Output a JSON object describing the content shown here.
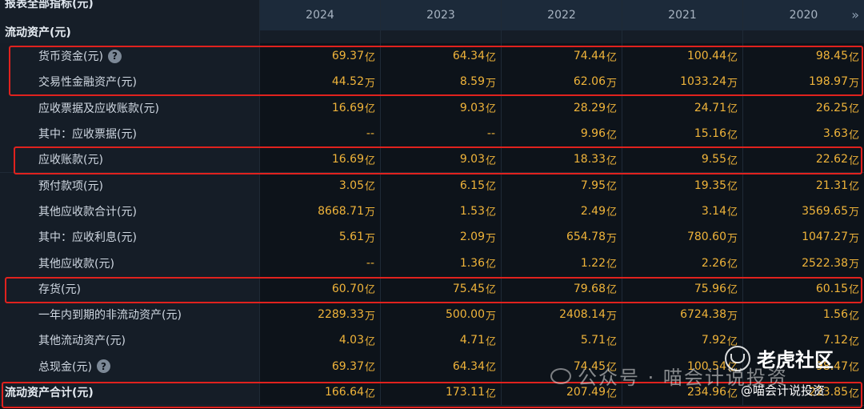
{
  "header": {
    "title": "报表全部指标(元)",
    "years": [
      "2024",
      "2023",
      "2022",
      "2021",
      "2020"
    ],
    "expand_glyph": "»"
  },
  "section": {
    "title": "流动资产(元)"
  },
  "rows": [
    {
      "label": "货币资金(元)",
      "has_help": true,
      "values": [
        [
          "69.37",
          "亿"
        ],
        [
          "64.34",
          "亿"
        ],
        [
          "74.44",
          "亿"
        ],
        [
          "100.44",
          "亿"
        ],
        [
          "98.45",
          "亿"
        ]
      ]
    },
    {
      "label": "交易性金融资产(元)",
      "has_help": false,
      "values": [
        [
          "44.52",
          "万"
        ],
        [
          "8.59",
          "万"
        ],
        [
          "62.06",
          "万"
        ],
        [
          "1033.24",
          "万"
        ],
        [
          "198.97",
          "万"
        ]
      ]
    },
    {
      "label": "应收票据及应收账款(元)",
      "has_help": false,
      "values": [
        [
          "16.69",
          "亿"
        ],
        [
          "9.03",
          "亿"
        ],
        [
          "28.29",
          "亿"
        ],
        [
          "24.71",
          "亿"
        ],
        [
          "26.25",
          "亿"
        ]
      ]
    },
    {
      "label": "其中：应收票据(元)",
      "has_help": false,
      "values": [
        [
          "--",
          ""
        ],
        [
          "--",
          ""
        ],
        [
          "9.96",
          "亿"
        ],
        [
          "15.16",
          "亿"
        ],
        [
          "3.63",
          "亿"
        ]
      ]
    },
    {
      "label": "应收账款(元)",
      "has_help": false,
      "values": [
        [
          "16.69",
          "亿"
        ],
        [
          "9.03",
          "亿"
        ],
        [
          "18.33",
          "亿"
        ],
        [
          "9.55",
          "亿"
        ],
        [
          "22.62",
          "亿"
        ]
      ]
    },
    {
      "label": "预付款项(元)",
      "has_help": false,
      "values": [
        [
          "3.05",
          "亿"
        ],
        [
          "6.15",
          "亿"
        ],
        [
          "7.95",
          "亿"
        ],
        [
          "19.35",
          "亿"
        ],
        [
          "21.31",
          "亿"
        ]
      ]
    },
    {
      "label": "其他应收款合计(元)",
      "has_help": false,
      "values": [
        [
          "8668.71",
          "万"
        ],
        [
          "1.53",
          "亿"
        ],
        [
          "2.49",
          "亿"
        ],
        [
          "3.14",
          "亿"
        ],
        [
          "3569.65",
          "万"
        ]
      ]
    },
    {
      "label": "其中：应收利息(元)",
      "has_help": false,
      "values": [
        [
          "5.61",
          "万"
        ],
        [
          "2.09",
          "万"
        ],
        [
          "654.78",
          "万"
        ],
        [
          "780.60",
          "万"
        ],
        [
          "1047.27",
          "万"
        ]
      ]
    },
    {
      "label": "其他应收款(元)",
      "has_help": false,
      "values": [
        [
          "--",
          ""
        ],
        [
          "1.36",
          "亿"
        ],
        [
          "1.22",
          "亿"
        ],
        [
          "2.26",
          "亿"
        ],
        [
          "2522.38",
          "万"
        ]
      ]
    },
    {
      "label": "存货(元)",
      "has_help": false,
      "values": [
        [
          "60.70",
          "亿"
        ],
        [
          "75.45",
          "亿"
        ],
        [
          "79.68",
          "亿"
        ],
        [
          "75.96",
          "亿"
        ],
        [
          "60.15",
          "亿"
        ]
      ]
    },
    {
      "label": "一年内到期的非流动资产(元)",
      "has_help": false,
      "values": [
        [
          "2289.33",
          "万"
        ],
        [
          "500.00",
          "万"
        ],
        [
          "2408.14",
          "万"
        ],
        [
          "6724.38",
          "万"
        ],
        [
          "1.56",
          "亿"
        ]
      ]
    },
    {
      "label": "其他流动资产(元)",
      "has_help": false,
      "values": [
        [
          "4.03",
          "亿"
        ],
        [
          "4.71",
          "亿"
        ],
        [
          "5.71",
          "亿"
        ],
        [
          "7.92",
          "亿"
        ],
        [
          "7.12",
          "亿"
        ]
      ]
    },
    {
      "label": "总现金(元)",
      "has_help": true,
      "values": [
        [
          "69.37",
          "亿"
        ],
        [
          "64.34",
          "亿"
        ],
        [
          "74.45",
          "亿"
        ],
        [
          "100.54",
          "亿"
        ],
        [
          "98.47",
          "亿"
        ]
      ]
    },
    {
      "label": "流动资产合计(元)",
      "has_help": false,
      "is_total": true,
      "values": [
        [
          "166.64",
          "亿"
        ],
        [
          "173.11",
          "亿"
        ],
        [
          "207.49",
          "亿"
        ],
        [
          "234.96",
          "亿"
        ],
        [
          "223.85",
          "亿"
        ]
      ]
    }
  ],
  "help_glyph": "?",
  "watermark": {
    "text": "公众号 · 喵会计说投资"
  },
  "brand": {
    "name": "老虎社区",
    "handle": "@喵会计说投资"
  },
  "colors": {
    "highlight": "#e0221e",
    "value": "#f0b43a",
    "background": "#0b1118"
  }
}
